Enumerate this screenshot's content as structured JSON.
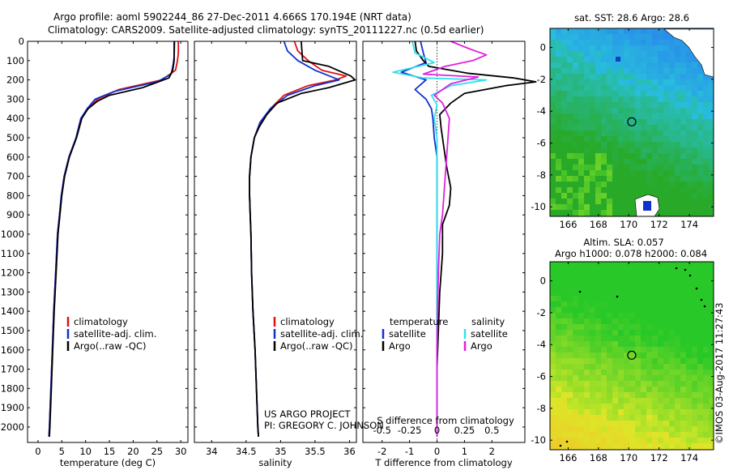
{
  "header": {
    "line1": "Argo profile: aoml 5902244_86 27-Dec-2011 4.666S 170.194E (NRT data)",
    "line2": "Climatology: CARS2009. Satellite-adjusted climatology: synTS_20111227.nc (0.5d earlier)"
  },
  "project": {
    "line1": "US ARGO PROJECT",
    "line2": "PI: GREGORY C. JOHNSON"
  },
  "credit": "©IMOS 03-Aug-2017 11:27:43",
  "colors": {
    "climatology": "#e01010",
    "satellite": "#1030d0",
    "argo": "#000000",
    "sat_salinity": "#30e0f0",
    "argo_salinity": "#e020e0"
  },
  "chart_data": [
    {
      "type": "line",
      "id": "temperature",
      "xlabel": "temperature (deg C)",
      "xticks": [
        0,
        5,
        10,
        15,
        20,
        25,
        30
      ],
      "xlim": [
        -2.2,
        31.5
      ],
      "ylim": [
        2080,
        0
      ],
      "yticks": [
        0,
        100,
        200,
        300,
        400,
        500,
        600,
        700,
        800,
        900,
        1000,
        1100,
        1200,
        1300,
        1400,
        1500,
        1600,
        1700,
        1800,
        1900,
        2000
      ],
      "legend": [
        "climatology",
        "satellite-adj. clim.",
        "Argo(..raw -QC)"
      ],
      "series": [
        {
          "name": "climatology",
          "color": "#e01010",
          "points": [
            [
              29.5,
              0
            ],
            [
              29.5,
              60
            ],
            [
              29.3,
              100
            ],
            [
              28.9,
              150
            ],
            [
              26,
              200
            ],
            [
              17,
              250
            ],
            [
              12.5,
              300
            ],
            [
              10.5,
              350
            ],
            [
              9,
              400
            ],
            [
              8,
              500
            ],
            [
              6.5,
              600
            ],
            [
              5.5,
              700
            ],
            [
              4.9,
              800
            ],
            [
              4.5,
              900
            ],
            [
              4.1,
              1000
            ],
            [
              3.7,
              1200
            ],
            [
              3.3,
              1400
            ],
            [
              3,
              1600
            ],
            [
              2.7,
              1800
            ],
            [
              2.4,
              2000
            ],
            [
              2.3,
              2050
            ]
          ]
        },
        {
          "name": "satellite-adj. clim.",
          "color": "#1030d0",
          "points": [
            [
              28.7,
              0
            ],
            [
              28.6,
              80
            ],
            [
              28.4,
              120
            ],
            [
              28,
              170
            ],
            [
              25,
              210
            ],
            [
              16,
              260
            ],
            [
              12,
              300
            ],
            [
              10.3,
              350
            ],
            [
              9,
              400
            ],
            [
              8,
              500
            ],
            [
              6.5,
              600
            ],
            [
              5.5,
              700
            ],
            [
              4.9,
              800
            ],
            [
              4.5,
              900
            ],
            [
              4.1,
              1000
            ],
            [
              3.7,
              1200
            ],
            [
              3.3,
              1400
            ],
            [
              3,
              1600
            ],
            [
              2.7,
              1800
            ],
            [
              2.4,
              2000
            ],
            [
              2.3,
              2050
            ]
          ]
        },
        {
          "name": "Argo(..raw -QC)",
          "color": "#000000",
          "points": [
            [
              28.6,
              0
            ],
            [
              28.6,
              100
            ],
            [
              28.3,
              150
            ],
            [
              27.5,
              190
            ],
            [
              22,
              240
            ],
            [
              15,
              280
            ],
            [
              12.5,
              310
            ],
            [
              10.5,
              350
            ],
            [
              9.2,
              400
            ],
            [
              8.1,
              500
            ],
            [
              6.6,
              600
            ],
            [
              5.6,
              700
            ],
            [
              5,
              800
            ],
            [
              4.6,
              900
            ],
            [
              4.2,
              1000
            ],
            [
              3.8,
              1200
            ],
            [
              3.4,
              1400
            ],
            [
              3.1,
              1600
            ],
            [
              2.8,
              1800
            ],
            [
              2.5,
              2000
            ],
            [
              2.4,
              2050
            ]
          ]
        }
      ]
    },
    {
      "type": "line",
      "id": "salinity",
      "xlabel": "salinity",
      "xticks": [
        34,
        34.5,
        35,
        35.5,
        36
      ],
      "xlim": [
        33.75,
        36.1
      ],
      "ylim": [
        2080,
        0
      ],
      "legend": [
        "climatology",
        "satellite-adj. clim.",
        "Argo(..raw -QC)"
      ],
      "series": [
        {
          "name": "climatology",
          "color": "#e01010",
          "points": [
            [
              35.2,
              0
            ],
            [
              35.25,
              50
            ],
            [
              35.4,
              100
            ],
            [
              35.6,
              150
            ],
            [
              35.95,
              180
            ],
            [
              35.8,
              200
            ],
            [
              35.4,
              230
            ],
            [
              35.05,
              280
            ],
            [
              34.85,
              350
            ],
            [
              34.72,
              420
            ],
            [
              34.62,
              500
            ],
            [
              34.57,
              600
            ],
            [
              34.55,
              700
            ],
            [
              34.55,
              800
            ],
            [
              34.56,
              900
            ],
            [
              34.57,
              1000
            ],
            [
              34.58,
              1200
            ],
            [
              34.6,
              1400
            ],
            [
              34.63,
              1600
            ],
            [
              34.65,
              1800
            ],
            [
              34.67,
              2000
            ],
            [
              34.68,
              2050
            ]
          ]
        },
        {
          "name": "satellite-adj. clim.",
          "color": "#1030d0",
          "points": [
            [
              35.05,
              0
            ],
            [
              35.1,
              50
            ],
            [
              35.25,
              100
            ],
            [
              35.5,
              150
            ],
            [
              35.85,
              200
            ],
            [
              35.5,
              230
            ],
            [
              35.1,
              280
            ],
            [
              34.85,
              350
            ],
            [
              34.7,
              420
            ],
            [
              34.62,
              500
            ],
            [
              34.57,
              600
            ],
            [
              34.55,
              700
            ],
            [
              34.55,
              800
            ],
            [
              34.56,
              900
            ],
            [
              34.57,
              1000
            ],
            [
              34.58,
              1200
            ],
            [
              34.6,
              1400
            ],
            [
              34.63,
              1600
            ],
            [
              34.65,
              1800
            ],
            [
              34.67,
              2000
            ],
            [
              34.68,
              2050
            ]
          ]
        },
        {
          "name": "Argo(..raw -QC)",
          "color": "#000000",
          "points": [
            [
              35.3,
              0
            ],
            [
              35.32,
              100
            ],
            [
              35.7,
              130
            ],
            [
              36.02,
              180
            ],
            [
              36.08,
              200
            ],
            [
              35.7,
              240
            ],
            [
              35.3,
              270
            ],
            [
              34.95,
              320
            ],
            [
              34.8,
              380
            ],
            [
              34.68,
              450
            ],
            [
              34.62,
              500
            ],
            [
              34.57,
              600
            ],
            [
              34.55,
              700
            ],
            [
              34.55,
              800
            ],
            [
              34.56,
              900
            ],
            [
              34.57,
              1000
            ],
            [
              34.58,
              1200
            ],
            [
              34.6,
              1400
            ],
            [
              34.63,
              1600
            ],
            [
              34.65,
              1800
            ],
            [
              34.67,
              2000
            ],
            [
              34.68,
              2050
            ]
          ]
        }
      ]
    },
    {
      "type": "line",
      "id": "difference",
      "xlabel": "T difference from climatology",
      "xlabel_top": "S difference from climatology",
      "xticks": [
        -2,
        -1,
        0,
        1,
        2
      ],
      "xticks_top": [
        "-0.5",
        "-0.25",
        "0",
        "0.25",
        "0.5"
      ],
      "xlim": [
        -2.7,
        3.2
      ],
      "ylim": [
        2080,
        0
      ],
      "legend_left_title": "temperature",
      "legend_right_title": "salinity",
      "legend": [
        "satellite",
        "Argo",
        "satellite",
        "Argo"
      ],
      "series": [
        {
          "name": "temperature satellite",
          "color": "#1030d0",
          "points": [
            [
              -0.6,
              0
            ],
            [
              -0.5,
              60
            ],
            [
              -0.4,
              110
            ],
            [
              -1.3,
              160
            ],
            [
              -0.4,
              200
            ],
            [
              -0.8,
              250
            ],
            [
              -0.4,
              300
            ],
            [
              -0.2,
              350
            ],
            [
              -0.15,
              400
            ],
            [
              -0.1,
              500
            ],
            [
              0,
              600
            ],
            [
              0,
              800
            ],
            [
              0,
              1000
            ],
            [
              0,
              1200
            ],
            [
              0,
              1400
            ],
            [
              0,
              1600
            ],
            [
              0,
              1800
            ],
            [
              0,
              2000
            ],
            [
              0,
              2050
            ]
          ]
        },
        {
          "name": "temperature Argo",
          "color": "#000000",
          "points": [
            [
              -0.8,
              0
            ],
            [
              -0.75,
              50
            ],
            [
              -0.5,
              100
            ],
            [
              -0.3,
              130
            ],
            [
              1.1,
              165
            ],
            [
              2.8,
              190
            ],
            [
              3.6,
              210
            ],
            [
              2.5,
              230
            ],
            [
              1,
              270
            ],
            [
              0.5,
              320
            ],
            [
              0.1,
              380
            ],
            [
              0.15,
              450
            ],
            [
              0.25,
              550
            ],
            [
              0.35,
              650
            ],
            [
              0.5,
              760
            ],
            [
              0.45,
              850
            ],
            [
              0.2,
              950
            ],
            [
              0.2,
              1100
            ],
            [
              0.1,
              1300
            ],
            [
              0.05,
              1500
            ],
            [
              0,
              1700
            ],
            [
              0,
              2050
            ]
          ]
        },
        {
          "name": "salinity satellite",
          "color": "#30e0f0",
          "points": [
            [
              -0.9,
              0
            ],
            [
              -0.8,
              60
            ],
            [
              -0.1,
              110
            ],
            [
              -1.6,
              160
            ],
            [
              -0.5,
              190
            ],
            [
              1.8,
              200
            ],
            [
              0.5,
              230
            ],
            [
              -0.2,
              280
            ],
            [
              0,
              330
            ],
            [
              -0.1,
              400
            ],
            [
              0,
              500
            ],
            [
              0,
              1000
            ],
            [
              0,
              1500
            ],
            [
              0,
              2050
            ]
          ]
        },
        {
          "name": "salinity Argo",
          "color": "#e020e0",
          "points": [
            [
              0.5,
              0
            ],
            [
              1.2,
              40
            ],
            [
              1.8,
              70
            ],
            [
              1.3,
              100
            ],
            [
              0.3,
              130
            ],
            [
              -0.5,
              170
            ],
            [
              1.5,
              185
            ],
            [
              0.5,
              220
            ],
            [
              -0.1,
              280
            ],
            [
              0.2,
              320
            ],
            [
              0.45,
              400
            ],
            [
              0.4,
              500
            ],
            [
              0.35,
              600
            ],
            [
              0.3,
              700
            ],
            [
              0.25,
              800
            ],
            [
              0.2,
              900
            ],
            [
              0.1,
              1000
            ],
            [
              0.05,
              1200
            ],
            [
              0.02,
              1400
            ],
            [
              0,
              1600
            ],
            [
              0,
              2050
            ]
          ]
        }
      ]
    },
    {
      "type": "heatmap",
      "id": "sst_map",
      "title": "sat. SST: 28.6 Argo: 28.6",
      "xticks": [
        166,
        168,
        170,
        172,
        174
      ],
      "yticks": [
        0,
        -2,
        -4,
        -6,
        -8,
        -10
      ],
      "xlim": [
        164.8,
        175.6
      ],
      "ylim": [
        -10.6,
        1.2
      ],
      "marker": [
        170.194,
        -4.666
      ]
    },
    {
      "type": "heatmap",
      "id": "sla_map",
      "title": "Altim. SLA: 0.057",
      "subtitle": "Argo h1000: 0.078 h2000: 0.084",
      "xticks": [
        166,
        168,
        170,
        172,
        174
      ],
      "yticks": [
        0,
        -2,
        -4,
        -6,
        -8,
        -10
      ],
      "xlim": [
        164.8,
        175.6
      ],
      "ylim": [
        -10.6,
        1.2
      ],
      "marker": [
        170.194,
        -4.666
      ]
    }
  ]
}
